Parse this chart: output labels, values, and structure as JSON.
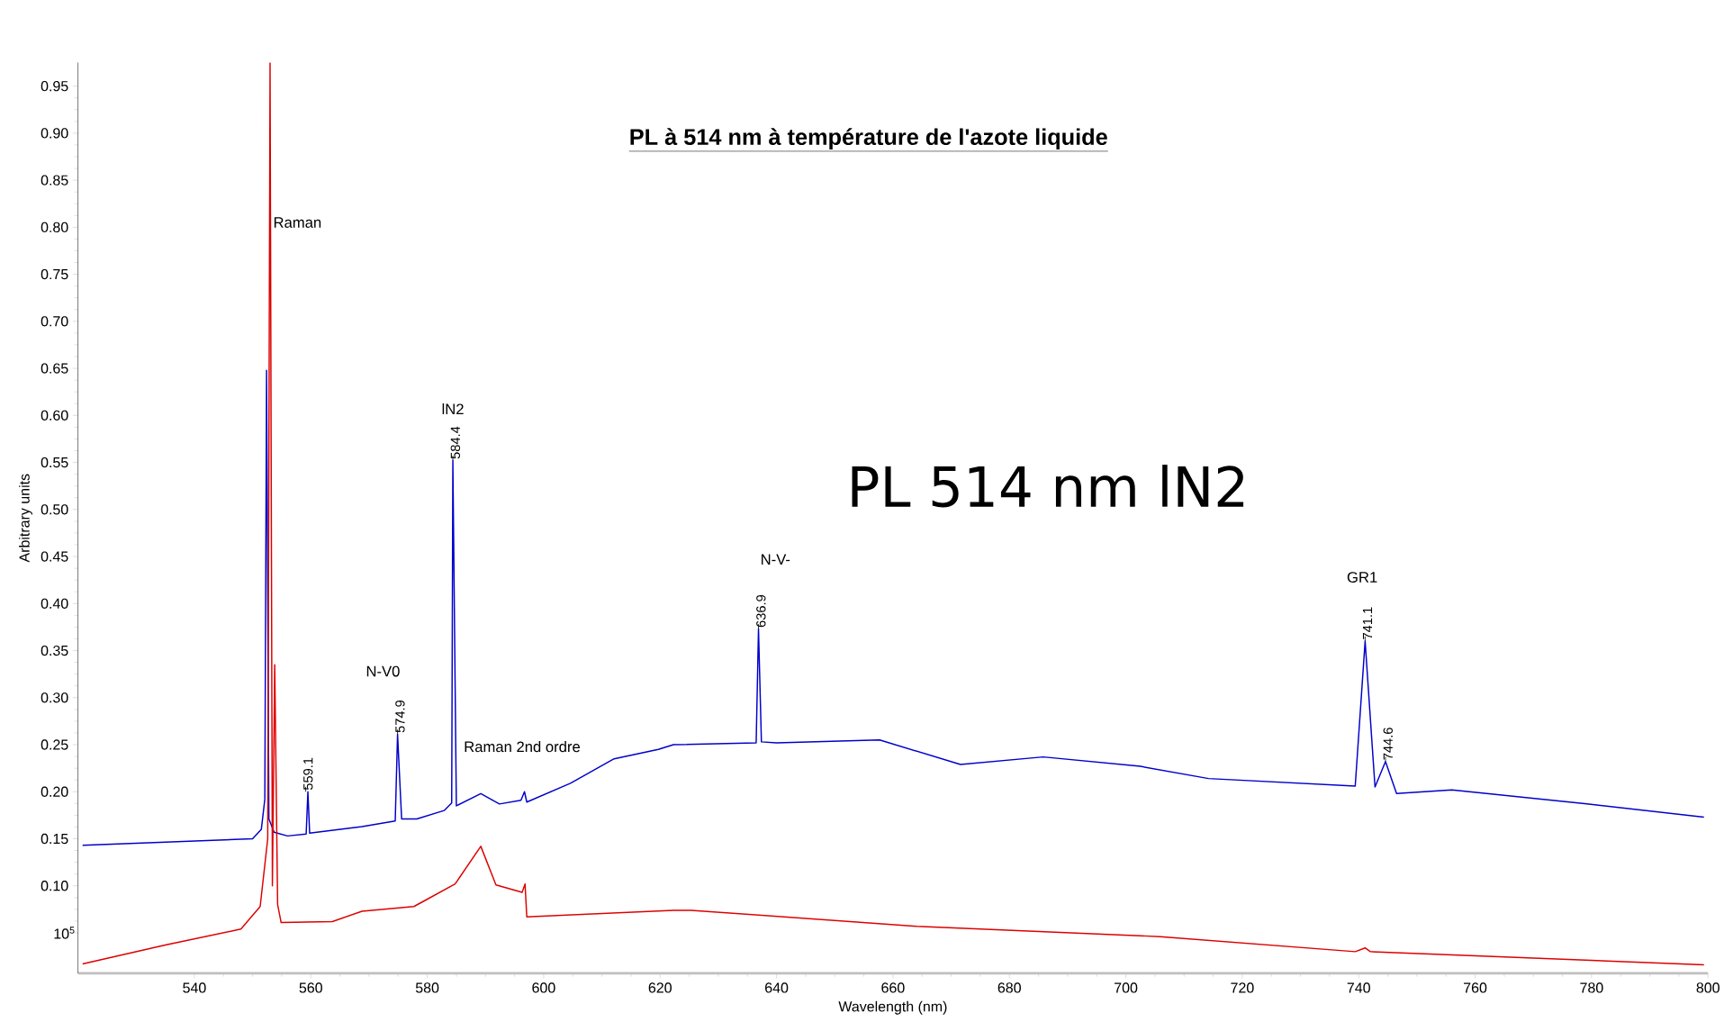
{
  "chart_data": {
    "type": "line",
    "title": "**PL à 514 nm à température de l'azote liquide**",
    "xlabel": "Wavelength (nm)",
    "ylabel": "Arbitrary units",
    "xlim": [
      520,
      800
    ],
    "xticks": [
      540,
      560,
      580,
      600,
      620,
      640,
      660,
      680,
      700,
      720,
      740,
      760,
      780,
      800
    ],
    "ylim": [
      0.007,
      0.975
    ],
    "yticks": [
      {
        "value": 0.05,
        "label": null
      },
      {
        "value": 0.1,
        "label": "0.10"
      },
      {
        "value": 0.15,
        "label": "0.15"
      },
      {
        "value": 0.2,
        "label": "0.20"
      },
      {
        "value": 0.25,
        "label": "0.25"
      },
      {
        "value": 0.3,
        "label": "0.30"
      },
      {
        "value": 0.35,
        "label": "0.35"
      },
      {
        "value": 0.4,
        "label": "0.40"
      },
      {
        "value": 0.45,
        "label": "0.45"
      },
      {
        "value": 0.5,
        "label": "0.50"
      },
      {
        "value": 0.55,
        "label": "0.55"
      },
      {
        "value": 0.6,
        "label": "0.60"
      },
      {
        "value": 0.65,
        "label": "0.65"
      },
      {
        "value": 0.7,
        "label": "0.70"
      },
      {
        "value": 0.75,
        "label": "0.75"
      },
      {
        "value": 0.8,
        "label": "0.80"
      },
      {
        "value": 0.85,
        "label": "0.85"
      },
      {
        "value": 0.9,
        "label": "0.90"
      },
      {
        "value": 0.95,
        "label": "0.95"
      }
    ],
    "marker": "none",
    "line_style": "solid",
    "series": [
      {
        "color": "#0000cc",
        "x": [
          520.8,
          550.0,
          551.5,
          552.1,
          552.4,
          552.8,
          553.7,
          556.0,
          559.2,
          559.5,
          559.8,
          568.8,
          574.5,
          574.9,
          575.6,
          578.2,
          582.9,
          584.2,
          584.4,
          585.0,
          589.2,
          592.4,
          596.1,
          596.7,
          597.1,
          604.6,
          612.1,
          619.7,
          622.3,
          636.5,
          636.9,
          637.4,
          640.0,
          657.7,
          671.6,
          685.8,
          702.5,
          714.2,
          739.4,
          741.1,
          742.8,
          744.6,
          746.5,
          756.0,
          779.2,
          799.3
        ],
        "values": [
          0.143,
          0.15,
          0.16,
          0.192,
          0.648,
          0.171,
          0.157,
          0.153,
          0.155,
          0.2,
          0.156,
          0.163,
          0.169,
          0.261,
          0.171,
          0.171,
          0.18,
          0.188,
          0.552,
          0.185,
          0.198,
          0.187,
          0.191,
          0.2,
          0.189,
          0.209,
          0.235,
          0.245,
          0.25,
          0.252,
          0.373,
          0.253,
          0.252,
          0.255,
          0.229,
          0.237,
          0.227,
          0.214,
          0.206,
          0.36,
          0.205,
          0.232,
          0.198,
          0.202,
          0.187,
          0.173
        ]
      },
      {
        "color": "#dd0000",
        "x": [
          520.8,
          535.0,
          548.0,
          551.3,
          552.6,
          553.0,
          553.4,
          553.8,
          554.3,
          554.9,
          563.7,
          568.8,
          577.7,
          579.2,
          584.8,
          589.2,
          591.8,
          596.3,
          596.8,
          597.1,
          622.3,
          625.3,
          664.1,
          705.9,
          739.4,
          741.1,
          742.0,
          799.3
        ],
        "values": [
          0.017,
          0.037,
          0.054,
          0.078,
          0.15,
          0.975,
          0.1,
          0.335,
          0.08,
          0.061,
          0.062,
          0.073,
          0.078,
          0.083,
          0.102,
          0.142,
          0.101,
          0.093,
          0.102,
          0.067,
          0.074,
          0.074,
          0.057,
          0.046,
          0.03,
          0.034,
          0.03,
          0.016
        ]
      }
    ],
    "annotations": [
      "PL 514 nm lN2",
      "Raman",
      "N-V0",
      "lN2",
      "Raman 2nd ordre",
      "N-V-",
      "GR1",
      {
        "text": "559.1",
        "x": 559.1,
        "y": 0.2
      },
      {
        "text": "574.9",
        "x": 574.9,
        "y": 0.261
      },
      {
        "text": "584.4",
        "x": 584.4,
        "y": 0.552
      },
      {
        "text": "636.9",
        "x": 636.9,
        "y": 0.373
      },
      {
        "text": "741.1",
        "x": 741.1,
        "y": 0.36
      },
      {
        "text": "744.6",
        "x": 744.6,
        "y": 0.232
      },
      "10$^{5}$"
    ]
  }
}
